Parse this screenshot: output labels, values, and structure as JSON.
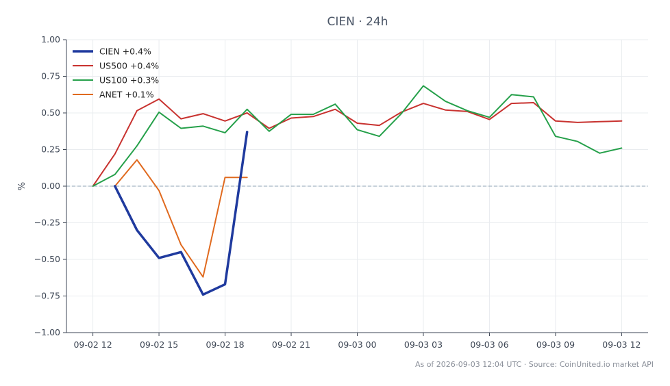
{
  "chart_data": {
    "type": "line",
    "title": "CIEN · 24h",
    "xlabel": "",
    "ylabel": "%",
    "ylim": [
      -1.0,
      1.0
    ],
    "yticks": [
      1.0,
      0.75,
      0.5,
      0.25,
      0.0,
      -0.25,
      -0.5,
      -0.75,
      -1.0
    ],
    "ytick_labels": [
      "1.00",
      "0.75",
      "0.50",
      "0.25",
      "0.00",
      "−0.25",
      "−0.50",
      "−0.75",
      "−1.00"
    ],
    "xlim": [
      -1.2,
      25.2
    ],
    "xticks": [
      0,
      3,
      6,
      9,
      12,
      15,
      18,
      21,
      24
    ],
    "xtick_labels": [
      "09-02 12",
      "09-02 15",
      "09-02 18",
      "09-02 21",
      "09-03 00",
      "09-03 03",
      "09-03 06",
      "09-03 09",
      "09-03 12"
    ],
    "grid": true,
    "zero_line": true,
    "legend_position": "top-left",
    "series": [
      {
        "name": "CIEN +0.4%",
        "color": "#1f3a9e",
        "width": 3.5,
        "x": [
          1,
          2,
          3,
          4,
          5,
          6,
          7
        ],
        "y": [
          0.0,
          -0.3,
          -0.49,
          -0.45,
          -0.74,
          -0.67,
          0.37
        ]
      },
      {
        "name": "US500 +0.4%",
        "color": "#c8322f",
        "width": 2,
        "x": [
          0,
          1,
          2,
          3,
          4,
          5,
          6,
          7,
          8,
          9,
          10,
          11,
          12,
          13,
          14,
          15,
          16,
          17,
          18,
          19,
          20,
          21,
          22,
          23,
          24
        ],
        "y": [
          0.0,
          0.22,
          0.515,
          0.595,
          0.46,
          0.495,
          0.445,
          0.5,
          0.395,
          0.465,
          0.475,
          0.525,
          0.43,
          0.415,
          0.505,
          0.565,
          0.52,
          0.51,
          0.455,
          0.565,
          0.57,
          0.445,
          0.435,
          0.44,
          0.445
        ]
      },
      {
        "name": "US100 +0.3%",
        "color": "#25a04a",
        "width": 2,
        "x": [
          0,
          1,
          2,
          3,
          4,
          5,
          6,
          7,
          8,
          9,
          10,
          11,
          12,
          13,
          14,
          15,
          16,
          17,
          18,
          19,
          20,
          21,
          22,
          23,
          24
        ],
        "y": [
          0.0,
          0.08,
          0.275,
          0.505,
          0.395,
          0.41,
          0.365,
          0.525,
          0.375,
          0.49,
          0.49,
          0.56,
          0.385,
          0.34,
          0.495,
          0.685,
          0.58,
          0.515,
          0.47,
          0.625,
          0.61,
          0.34,
          0.305,
          0.225,
          0.26
        ]
      },
      {
        "name": "ANET +0.1%",
        "color": "#e06a1f",
        "width": 2,
        "x": [
          1,
          2,
          3,
          4,
          5,
          6,
          7
        ],
        "y": [
          0.0,
          0.18,
          -0.03,
          -0.4,
          -0.62,
          0.06,
          0.06
        ]
      }
    ]
  },
  "footer": "As of 2026-09-03 12:04 UTC · Source: CoinUnited.io market API"
}
